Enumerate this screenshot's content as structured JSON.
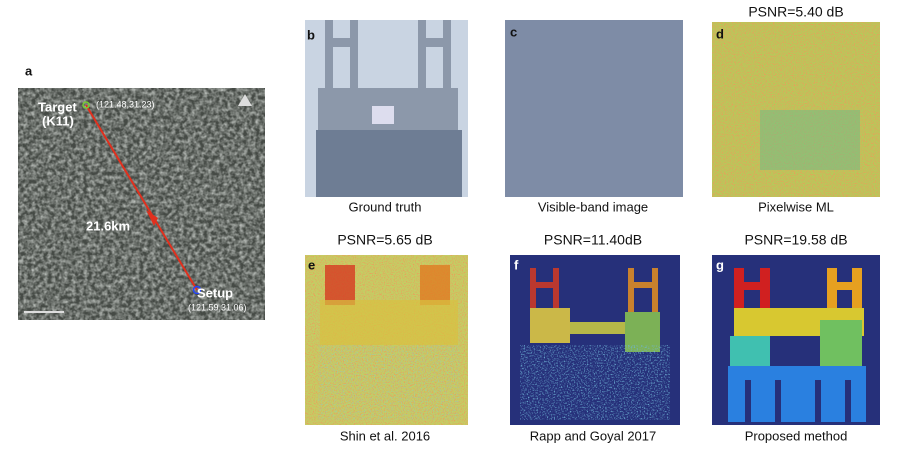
{
  "panel_a": {
    "letter": "a",
    "target": "Target",
    "target_id": "(K11)",
    "target_coords": "(121.48,31.23)",
    "distance": "21.6km",
    "setup": "Setup",
    "setup_coords": "(121.59,31.06)"
  },
  "panel_b": {
    "letter": "b",
    "caption": "Ground truth"
  },
  "panel_c": {
    "letter": "c",
    "caption": "Visible-band image"
  },
  "panel_d": {
    "letter": "d",
    "title": "PSNR=5.40 dB",
    "caption": "Pixelwise ML"
  },
  "panel_e": {
    "letter": "e",
    "title": "PSNR=5.65 dB",
    "caption": "Shin et al. 2016"
  },
  "panel_f": {
    "letter": "f",
    "title": "PSNR=11.40dB",
    "caption": "Rapp and Goyal 2017"
  },
  "panel_g": {
    "letter": "g",
    "title": "PSNR=19.58 dB",
    "caption": "Proposed method"
  }
}
